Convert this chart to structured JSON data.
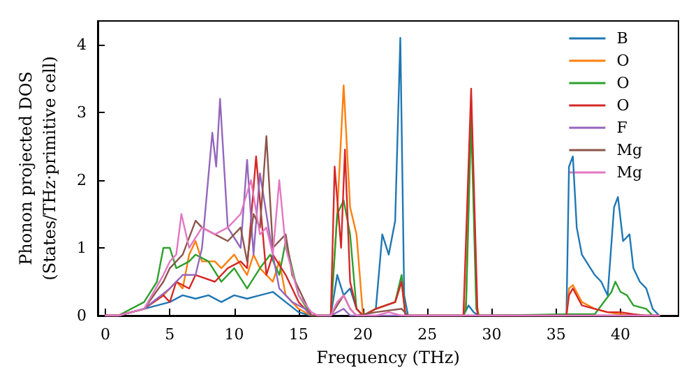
{
  "chart_data": {
    "type": "line",
    "xlabel": "Frequency (THz)",
    "ylabel": "Phonon projected DOS\n(States/THz·primitive cell)",
    "xlim": [
      -0.6,
      44.5
    ],
    "ylim": [
      0,
      4.35
    ],
    "xticks": [
      0,
      5,
      10,
      15,
      20,
      25,
      30,
      35,
      40
    ],
    "yticks": [
      0,
      1,
      2,
      3,
      4
    ],
    "grid": false,
    "legend": "top right",
    "marker": "none",
    "line_style": "solid",
    "series": [
      {
        "name": "B",
        "color": "#1f77b4",
        "x": [
          0,
          1,
          3,
          5,
          6,
          7,
          8,
          9,
          10,
          11,
          12,
          13,
          14,
          15,
          16,
          17.5,
          18,
          18.5,
          19,
          19.5,
          20,
          21,
          21.5,
          22,
          22.5,
          22.9,
          23.2,
          23.5,
          27.8,
          28.2,
          28.6,
          29,
          35.8,
          36,
          36.3,
          36.6,
          37,
          38,
          38.5,
          39,
          39.5,
          39.8,
          40.2,
          40.7,
          41,
          41.5,
          42,
          42.5,
          43
        ],
        "values": [
          0,
          0,
          0.1,
          0.2,
          0.3,
          0.25,
          0.3,
          0.2,
          0.3,
          0.25,
          0.3,
          0.35,
          0.2,
          0.05,
          0,
          0,
          0.6,
          0.3,
          0.4,
          0.1,
          0,
          0.1,
          1.2,
          0.9,
          1.4,
          4.1,
          0.3,
          0,
          0,
          0.15,
          0.05,
          0,
          0,
          2.2,
          2.35,
          1.3,
          0.9,
          0.6,
          0.5,
          0.3,
          1.6,
          1.75,
          1.1,
          1.2,
          0.7,
          0.5,
          0.4,
          0.1,
          0
        ]
      },
      {
        "name": "O",
        "color": "#ff7f0e",
        "x": [
          0,
          1,
          3,
          4.5,
          5.5,
          6,
          6.5,
          7,
          7.5,
          8.5,
          9,
          10,
          11,
          11.5,
          12,
          13,
          13.5,
          14,
          15,
          16,
          17.5,
          18,
          18.5,
          19,
          19.5,
          20,
          21,
          22.5,
          23,
          23.3,
          27.8,
          28,
          28.4,
          28.8,
          29,
          35.8,
          36,
          36.3,
          37,
          38,
          39,
          40,
          41,
          43
        ],
        "values": [
          0,
          0,
          0.1,
          0.3,
          0.5,
          0.4,
          0.9,
          1.1,
          0.8,
          0.8,
          0.7,
          0.9,
          0.6,
          0.9,
          0.7,
          0.5,
          0.8,
          0.3,
          0.1,
          0,
          0,
          1.5,
          3.4,
          1.6,
          1.2,
          0,
          0.1,
          0.2,
          0.5,
          0,
          0,
          0.2,
          3.2,
          0.2,
          0,
          0,
          0.4,
          0.45,
          0.2,
          0.1,
          0.05,
          0.02,
          0,
          0
        ]
      },
      {
        "name": "O",
        "color": "#2ca02c",
        "x": [
          0,
          1,
          3,
          4,
          4.5,
          5,
          5.5,
          6.5,
          7,
          8,
          9,
          10,
          11,
          12,
          12.8,
          13.5,
          14,
          15,
          16,
          17.5,
          18,
          18.5,
          19,
          19.5,
          20,
          21,
          22.5,
          23,
          23.3,
          27.8,
          28,
          28.4,
          28.8,
          29,
          36,
          38,
          39.3,
          39.6,
          40,
          40.5,
          41,
          42,
          42.5,
          43
        ],
        "values": [
          0,
          0,
          0.2,
          0.5,
          1.0,
          1.0,
          0.7,
          0.8,
          0.9,
          0.8,
          0.5,
          0.7,
          0.4,
          0.7,
          0.9,
          0.6,
          1.1,
          0.3,
          0,
          0,
          1.5,
          1.7,
          1.2,
          0.1,
          0,
          0.1,
          0.2,
          0.6,
          0,
          0,
          0.1,
          2.9,
          0.1,
          0,
          0.02,
          0.02,
          0.35,
          0.5,
          0.35,
          0.3,
          0.15,
          0.1,
          0,
          0
        ]
      },
      {
        "name": "O",
        "color": "#d62728",
        "x": [
          0,
          1,
          3,
          4.5,
          5,
          5.5,
          6.5,
          7,
          8.5,
          9.5,
          10.5,
          11,
          11.7,
          12.5,
          13,
          14,
          15,
          16,
          17.5,
          17.8,
          18.3,
          18.6,
          19,
          19.5,
          20,
          21,
          22.5,
          23,
          23.3,
          27.8,
          28.4,
          28.9,
          35.8,
          36,
          36.3,
          37,
          38,
          39,
          40,
          41,
          42,
          43
        ],
        "values": [
          0,
          0,
          0.1,
          0.3,
          0.2,
          0.5,
          0.4,
          0.6,
          0.5,
          0.7,
          0.8,
          0.7,
          2.35,
          0.6,
          0.9,
          0.6,
          0.2,
          0,
          0,
          2.2,
          1.0,
          2.45,
          0.5,
          0.1,
          0,
          0.1,
          0.2,
          0.5,
          0,
          0,
          3.35,
          0,
          0,
          0.3,
          0.4,
          0.15,
          0.1,
          0.05,
          0.05,
          0.02,
          0,
          0
        ]
      },
      {
        "name": "F",
        "color": "#9467bd",
        "x": [
          0,
          1,
          3,
          5,
          6,
          7,
          7.5,
          8.3,
          8.6,
          8.9,
          9.5,
          10.5,
          11,
          11.5,
          12,
          13,
          13.5,
          14.5,
          15.5,
          16,
          17.5,
          18,
          18.5,
          19,
          43
        ],
        "values": [
          0,
          0,
          0.1,
          0.4,
          0.6,
          0.6,
          1.0,
          2.7,
          2.2,
          3.2,
          1.3,
          1.0,
          2.3,
          0.9,
          2.1,
          0.9,
          0.4,
          0.2,
          0.1,
          0,
          0,
          0.05,
          0.1,
          0,
          0
        ]
      },
      {
        "name": "Mg",
        "color": "#8c564b",
        "x": [
          0,
          1,
          3,
          4.5,
          5,
          6,
          7,
          7.5,
          8.5,
          9.5,
          10.5,
          11,
          11.5,
          12,
          12.5,
          13,
          14,
          14.5,
          15.5,
          16,
          17.5,
          18,
          18.5,
          19,
          19.5,
          21,
          23,
          23.5,
          43
        ],
        "values": [
          0,
          0,
          0.1,
          0.5,
          0.7,
          0.9,
          1.4,
          1.3,
          1.2,
          1.1,
          1.3,
          0.8,
          1.5,
          1.3,
          2.65,
          1.0,
          1.2,
          0.6,
          0.2,
          0,
          0,
          0.15,
          0.3,
          0.1,
          0,
          0.05,
          0.1,
          0,
          0
        ]
      },
      {
        "name": "Mg",
        "color": "#e377c2",
        "x": [
          0,
          1,
          3,
          4.5,
          5,
          5.5,
          5.9,
          6.5,
          7.5,
          8.5,
          9.5,
          10.5,
          11.3,
          12,
          12.5,
          13,
          13.5,
          14,
          15,
          16,
          16.5,
          17.5,
          18,
          18.5,
          19,
          19.5,
          21,
          22,
          23,
          43
        ],
        "values": [
          0,
          0,
          0.1,
          0.6,
          0.8,
          0.9,
          1.5,
          1.0,
          1.3,
          1.2,
          1.3,
          1.5,
          2.0,
          1.2,
          1.3,
          0.9,
          2.0,
          1.0,
          0.3,
          0.05,
          0,
          0,
          0.2,
          0.3,
          0.1,
          0,
          0,
          0.05,
          0,
          0
        ]
      }
    ]
  }
}
